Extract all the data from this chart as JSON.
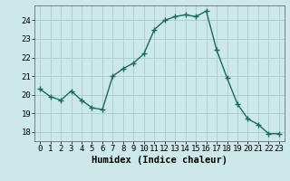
{
  "x": [
    0,
    1,
    2,
    3,
    4,
    5,
    6,
    7,
    8,
    9,
    10,
    11,
    12,
    13,
    14,
    15,
    16,
    17,
    18,
    19,
    20,
    21,
    22,
    23
  ],
  "y": [
    20.3,
    19.9,
    19.7,
    20.2,
    19.7,
    19.3,
    19.2,
    21.0,
    21.4,
    21.7,
    22.2,
    23.5,
    24.0,
    24.2,
    24.3,
    24.2,
    24.5,
    22.4,
    20.9,
    19.5,
    18.7,
    18.4,
    17.9,
    17.9
  ],
  "line_color": "#1a6b5a",
  "marker": "+",
  "marker_size": 4,
  "bg_color": "#cce8e8",
  "grid_color": "#aacccc",
  "xlabel": "Humidex (Indice chaleur)",
  "xlim": [
    -0.5,
    23.5
  ],
  "ylim": [
    17.5,
    24.8
  ],
  "yticks": [
    18,
    19,
    20,
    21,
    22,
    23,
    24
  ],
  "xticks": [
    0,
    1,
    2,
    3,
    4,
    5,
    6,
    7,
    8,
    9,
    10,
    11,
    12,
    13,
    14,
    15,
    16,
    17,
    18,
    19,
    20,
    21,
    22,
    23
  ],
  "xtick_labels": [
    "0",
    "1",
    "2",
    "3",
    "4",
    "5",
    "6",
    "7",
    "8",
    "9",
    "10",
    "11",
    "12",
    "13",
    "14",
    "15",
    "16",
    "17",
    "18",
    "19",
    "20",
    "21",
    "22",
    "23"
  ],
  "label_fontsize": 7.5,
  "tick_fontsize": 6.5
}
